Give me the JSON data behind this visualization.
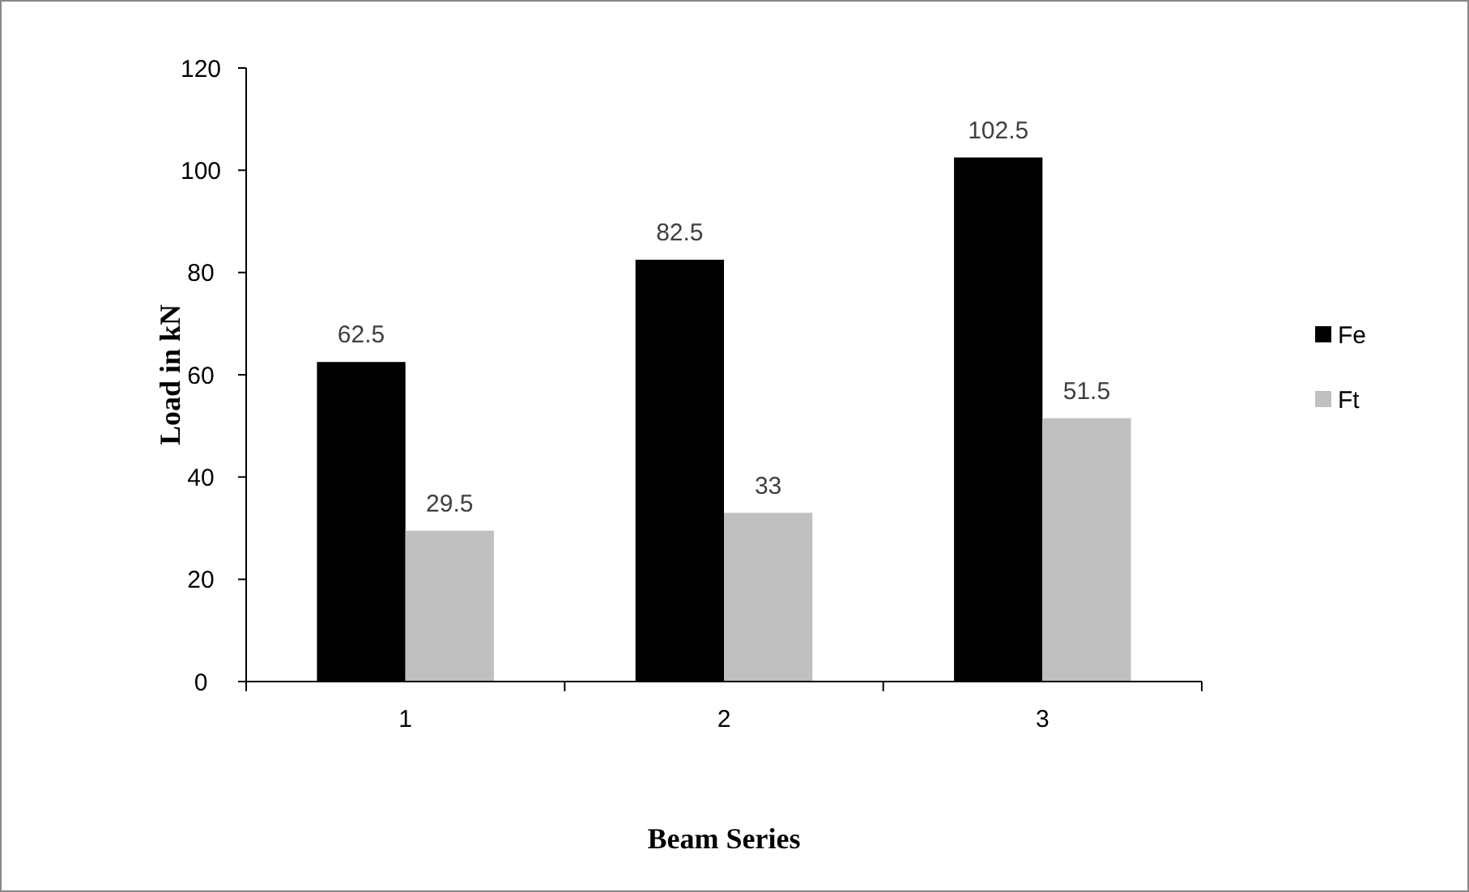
{
  "chart_data": {
    "type": "bar",
    "xlabel": "Beam Series",
    "ylabel": "Load in kN",
    "categories": [
      "1",
      "2",
      "3"
    ],
    "series": [
      {
        "name": "Fe",
        "color": "#000000",
        "values": [
          62.5,
          82.5,
          102.5
        ]
      },
      {
        "name": "Ft",
        "color": "#c0c0c0",
        "values": [
          29.5,
          33,
          51.5
        ]
      }
    ],
    "ylim": [
      0,
      120
    ],
    "yticks": [
      0,
      20,
      40,
      60,
      80,
      100,
      120
    ],
    "data_labels": true,
    "legend": "right",
    "grid": false
  }
}
